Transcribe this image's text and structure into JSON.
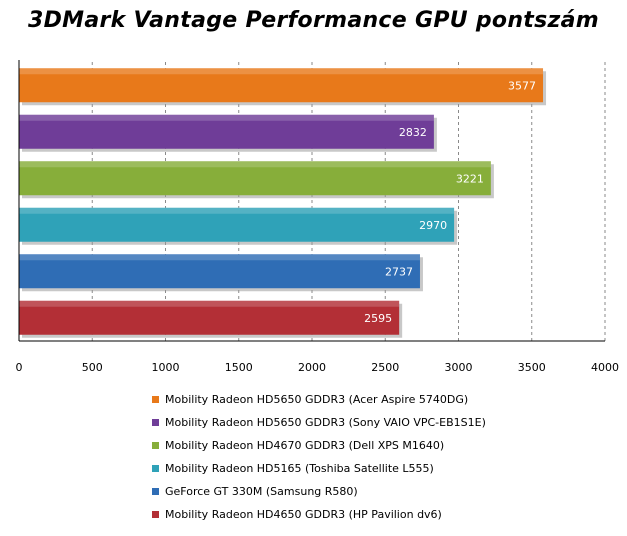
{
  "chart_data": {
    "type": "bar",
    "orientation": "horizontal",
    "title": "3DMark Vantage Performance GPU pontszám",
    "xlim": [
      0,
      4000
    ],
    "xticks": [
      0,
      500,
      1000,
      1500,
      2000,
      2500,
      3000,
      3500,
      4000
    ],
    "grid": true,
    "legend_position": "bottom",
    "series": [
      {
        "name": "Mobility Radeon HD5650 GDDR3 (Acer Aspire 5740DG)",
        "value": 3577,
        "color": "#e8791a"
      },
      {
        "name": "Mobility Radeon HD5650 GDDR3 (Sony VAIO VPC-EB1S1E)",
        "value": 2832,
        "color": "#6f3d98"
      },
      {
        "name": "Mobility Radeon HD4670 GDDR3 (Dell XPS M1640)",
        "value": 3221,
        "color": "#87ae3a"
      },
      {
        "name": "Mobility Radeon HD5165 (Toshiba Satellite L555)",
        "value": 2970,
        "color": "#2fa2b8"
      },
      {
        "name": "GeForce GT 330M (Samsung R580)",
        "value": 2737,
        "color": "#2f6db5"
      },
      {
        "name": "Mobility Radeon HD4650 GDDR3 (HP Pavilion dv6)",
        "value": 2595,
        "color": "#b32f36"
      }
    ]
  }
}
